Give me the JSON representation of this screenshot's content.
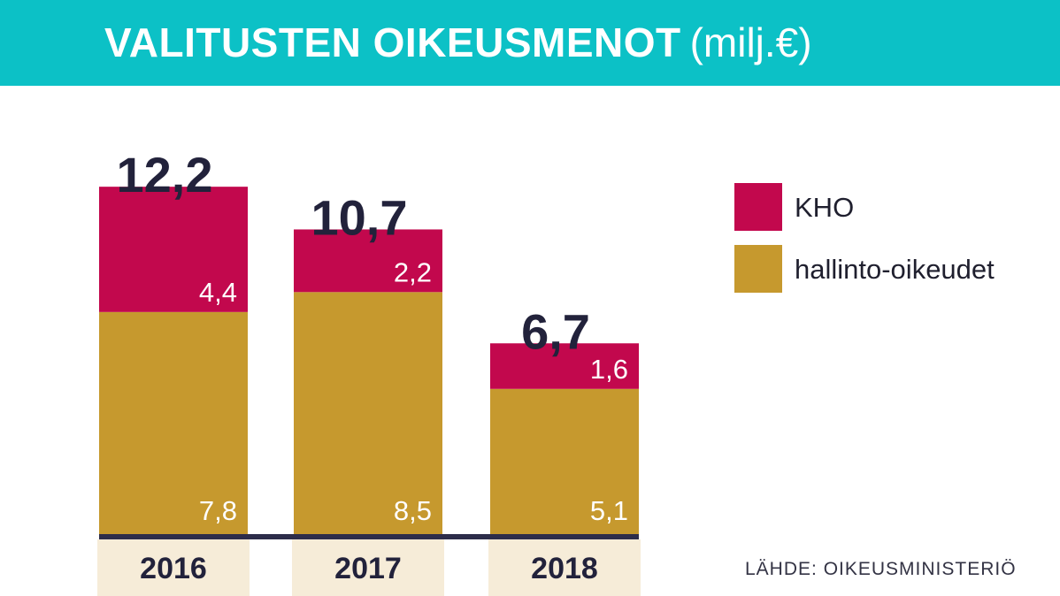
{
  "header": {
    "title": "VALITUSTEN OIKEUSMENOT",
    "unit": "(milj.€)"
  },
  "chart_data": {
    "type": "bar",
    "stacked": true,
    "categories": [
      "2016",
      "2017",
      "2018"
    ],
    "series": [
      {
        "name": "hallinto-oikeudet",
        "values": [
          7.8,
          8.5,
          5.1
        ],
        "labels": [
          "7,8",
          "8,5",
          "5,1"
        ],
        "color": "#c6992e"
      },
      {
        "name": "KHO",
        "values": [
          4.4,
          2.2,
          1.6
        ],
        "labels": [
          "4,4",
          "2,2",
          "1,6"
        ],
        "color": "#c2084d"
      }
    ],
    "totals": [
      12.2,
      10.7,
      6.7
    ],
    "total_labels": [
      "12,2",
      "10,7",
      "6,7"
    ],
    "legend_position": "right",
    "grid": false
  },
  "legend": {
    "items": [
      {
        "label": "KHO",
        "color": "#c2084d"
      },
      {
        "label": "hallinto-oikeudet",
        "color": "#c6992e"
      }
    ]
  },
  "source": "LÄHDE: OIKEUSMINISTERIÖ",
  "colors": {
    "header_bg": "#0cc1c6",
    "axis": "#2d2d4a",
    "total_text": "#22223b",
    "category_bg": "#f6ecd8"
  }
}
